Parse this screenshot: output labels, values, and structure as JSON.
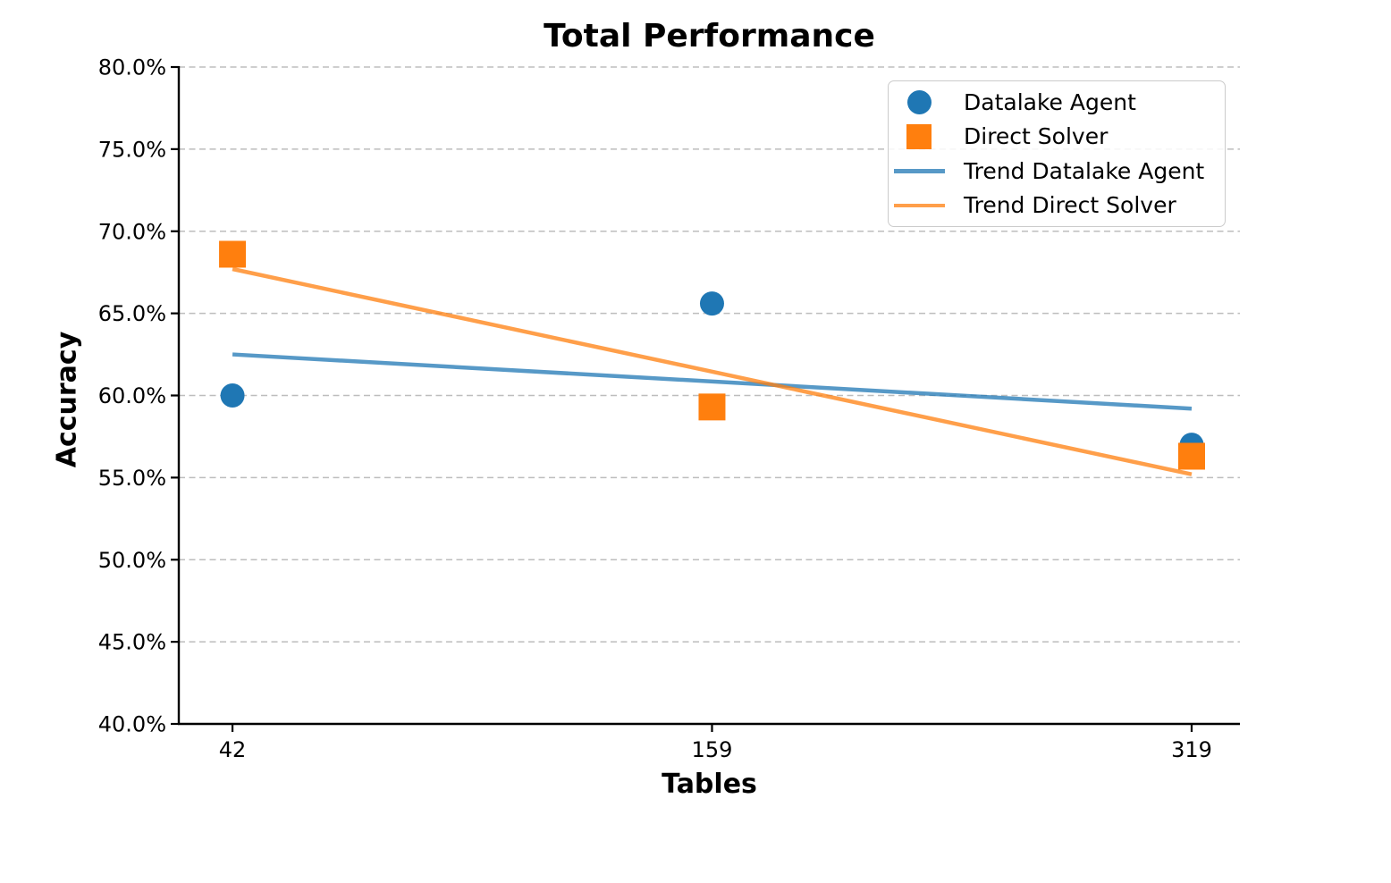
{
  "chart_data": {
    "type": "scatter",
    "title": "Total Performance",
    "xlabel": "Tables",
    "ylabel": "Accuracy",
    "x": [
      42,
      159,
      319
    ],
    "xtick_labels": [
      "42",
      "159",
      "319"
    ],
    "ylim": [
      40,
      80
    ],
    "ytick_step": 5,
    "ytick_labels": [
      "80.0%",
      "75.0%",
      "70.0%",
      "65.0%",
      "60.0%",
      "55.0%",
      "50.0%",
      "45.0%",
      "40.0%"
    ],
    "grid": "horizontal-dashed",
    "series": [
      {
        "name": "Datalake Agent",
        "marker": "circle",
        "color": "#1f77b4",
        "values": [
          60.0,
          65.6,
          57.0
        ]
      },
      {
        "name": "Direct Solver",
        "marker": "square",
        "color": "#ff7f0e",
        "values": [
          68.6,
          59.3,
          56.3
        ]
      }
    ],
    "trend_lines": [
      {
        "name": "Trend Datalake Agent",
        "color": "#1f77b4",
        "start": 62.5,
        "end": 59.2
      },
      {
        "name": "Trend Direct Solver",
        "color": "#ff7f0e",
        "start": 67.7,
        "end": 55.2
      }
    ],
    "legend": {
      "position": "upper-right",
      "entries": [
        {
          "label": "Datalake Agent",
          "marker": "circle",
          "color": "#1f77b4"
        },
        {
          "label": "Direct Solver",
          "marker": "square",
          "color": "#ff7f0e"
        },
        {
          "label": "Trend Datalake Agent",
          "marker": "line",
          "color": "#1f77b4"
        },
        {
          "label": "Trend Direct Solver",
          "marker": "line",
          "color": "#ff7f0e"
        }
      ]
    },
    "colors": {
      "blue": "#1f77b4",
      "orange": "#ff7f0e",
      "gridline": "#bdbdbd",
      "axis": "#000000"
    }
  }
}
